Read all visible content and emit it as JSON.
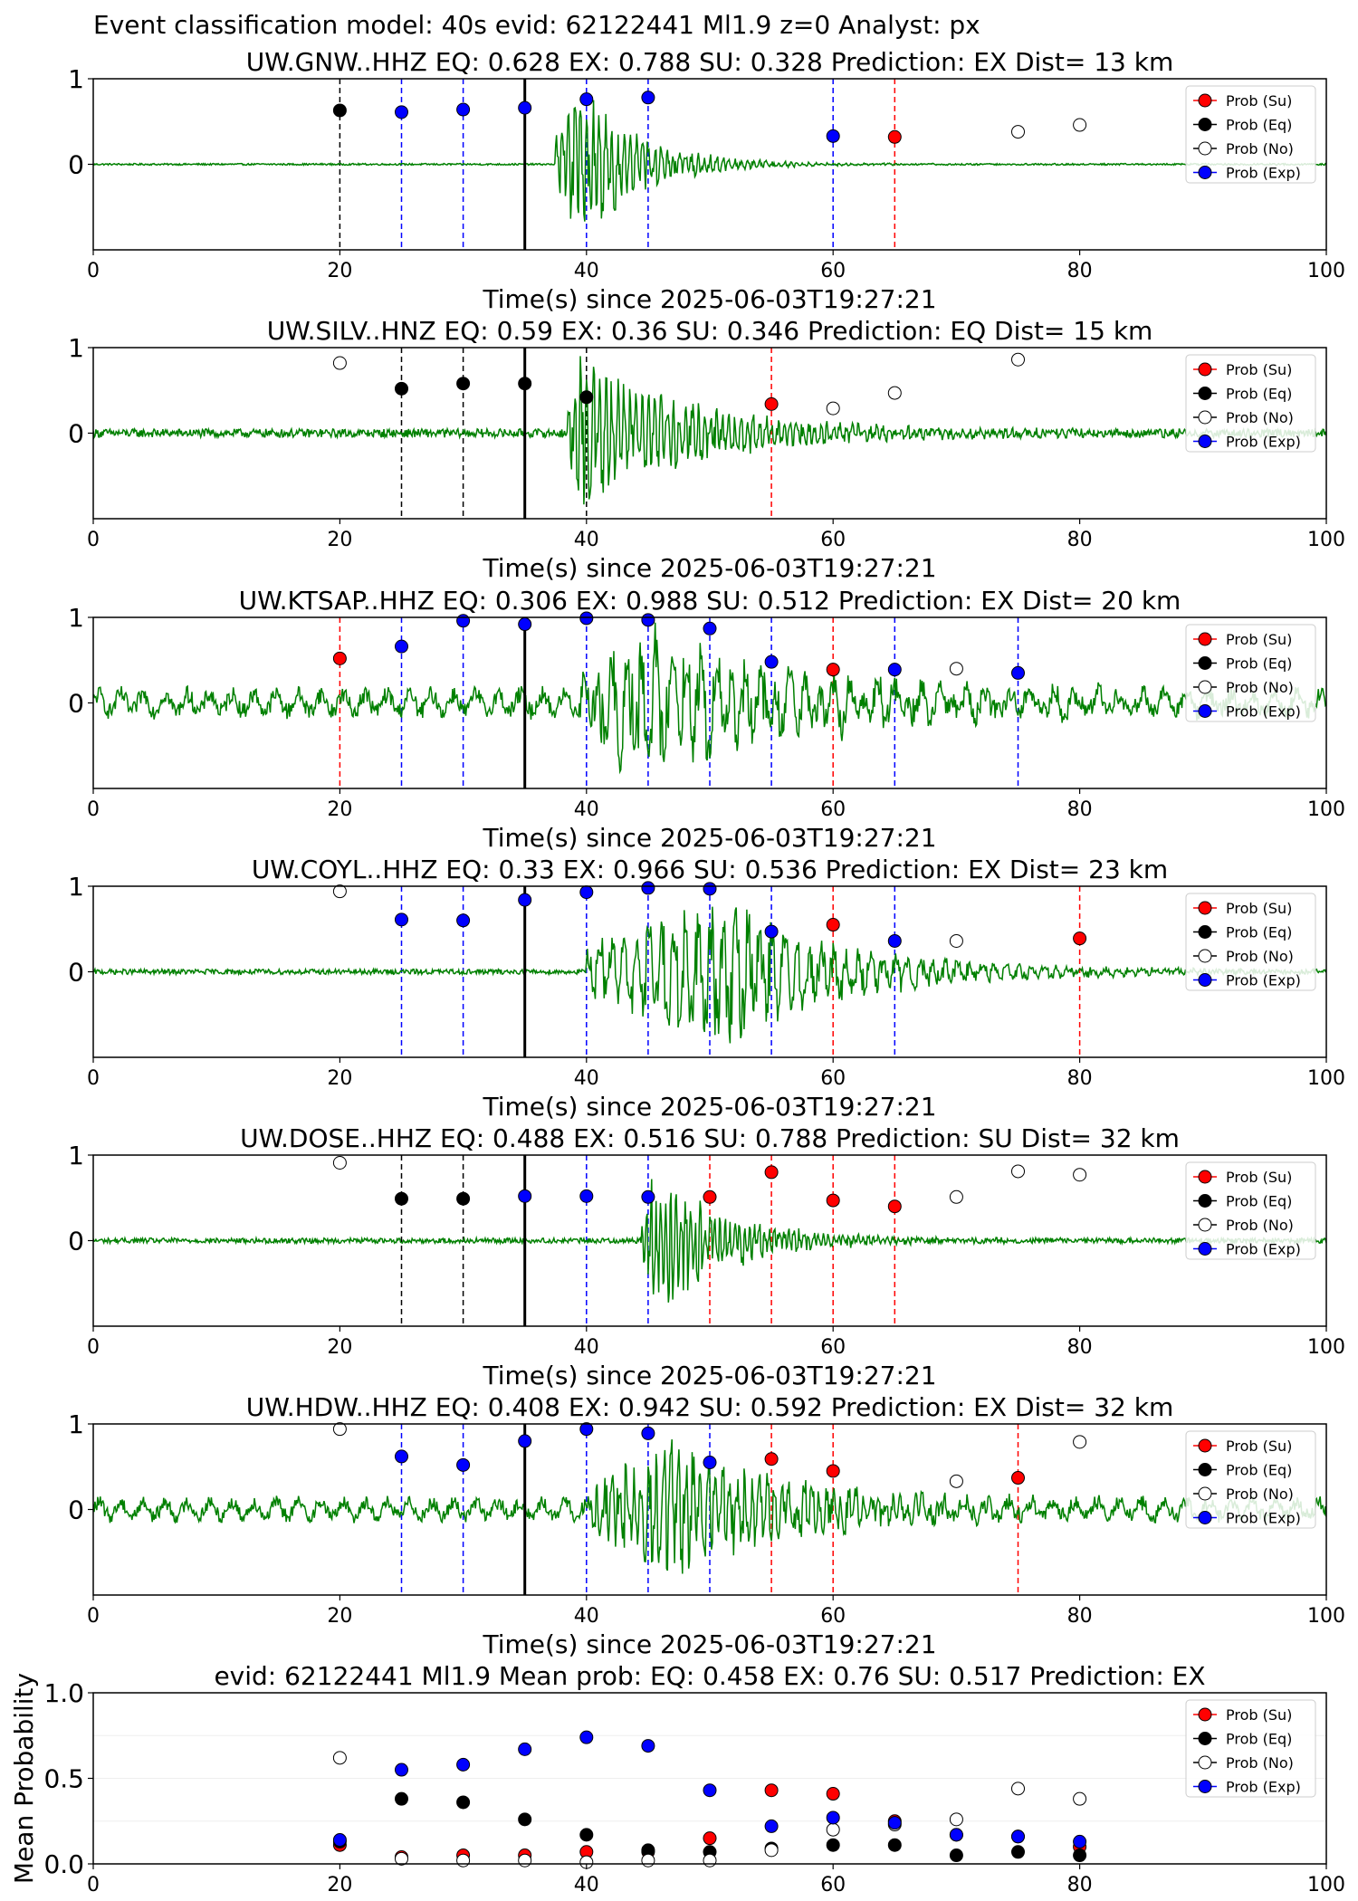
{
  "figure": {
    "suptitle": "Event classification model: 40s evid: 62122441 Ml1.9 z=0 Analyst: px",
    "colors": {
      "su": "#ff0000",
      "eq": "#000000",
      "no": "#ffffff",
      "ex": "#0000ff",
      "trace": "#008000",
      "ex_line": "#0000ff",
      "su_line": "#ff0000",
      "eq_line": "#000000"
    },
    "legend": [
      "Prob (Su)",
      "Prob (Eq)",
      "Prob (No)",
      "Prob (Exp)"
    ]
  },
  "chart_data": [
    {
      "type": "scatter",
      "station": "UW.GNW..HHZ",
      "title": "UW.GNW..HHZ   EQ: 0.628  EX: 0.788  SU: 0.328   Prediction: EX    Dist= 13 km",
      "xlabel": "Time(s) since 2025-06-03T19:27:21",
      "xlim": [
        0,
        100
      ],
      "ylim": [
        -1,
        1
      ],
      "xticks": [
        "0",
        "20",
        "40",
        "60",
        "80",
        "100"
      ],
      "yticks": [
        "1",
        "0"
      ],
      "origin_line": 35,
      "noise_amp": 0.01,
      "wave": {
        "onset": 37.5,
        "peak": 39.5,
        "amp": 0.95,
        "decay": 5,
        "period": 0.5
      },
      "windows": [
        {
          "t": 20,
          "cls": "eq",
          "p": 0.63
        },
        {
          "t": 25,
          "cls": "ex",
          "p": 0.61
        },
        {
          "t": 30,
          "cls": "ex",
          "p": 0.64
        },
        {
          "t": 35,
          "cls": "ex",
          "p": 0.66
        },
        {
          "t": 40,
          "cls": "ex",
          "p": 0.76
        },
        {
          "t": 45,
          "cls": "ex",
          "p": 0.78
        },
        {
          "t": 60,
          "cls": "ex",
          "p": 0.33
        },
        {
          "t": 65,
          "cls": "su",
          "p": 0.32
        },
        {
          "t": 75,
          "cls": "no",
          "p": 0.38
        },
        {
          "t": 80,
          "cls": "no",
          "p": 0.46
        }
      ]
    },
    {
      "type": "scatter",
      "station": "UW.SILV..HNZ",
      "title": "UW.SILV..HNZ   EQ: 0.59  EX: 0.36  SU: 0.346   Prediction: EQ    Dist= 15 km",
      "xlabel": "Time(s) since 2025-06-03T19:27:21",
      "xlim": [
        0,
        100
      ],
      "ylim": [
        -1,
        1
      ],
      "xticks": [
        "0",
        "20",
        "40",
        "60",
        "80",
        "100"
      ],
      "yticks": [
        "1",
        "0"
      ],
      "origin_line": 35,
      "noise_amp": 0.05,
      "wave": {
        "onset": 38.5,
        "peak": 39.5,
        "amp": 0.95,
        "decay": 10,
        "period": 0.5
      },
      "windows": [
        {
          "t": 20,
          "cls": "no",
          "p": 0.82
        },
        {
          "t": 25,
          "cls": "eq",
          "p": 0.52
        },
        {
          "t": 30,
          "cls": "eq",
          "p": 0.58
        },
        {
          "t": 35,
          "cls": "eq",
          "p": 0.58
        },
        {
          "t": 40,
          "cls": "eq",
          "p": 0.42
        },
        {
          "t": 55,
          "cls": "su",
          "p": 0.34
        },
        {
          "t": 60,
          "cls": "no",
          "p": 0.29
        },
        {
          "t": 65,
          "cls": "no",
          "p": 0.47
        },
        {
          "t": 75,
          "cls": "no",
          "p": 0.86
        }
      ]
    },
    {
      "type": "scatter",
      "station": "UW.KTSAP..HHZ",
      "title": "UW.KTSAP..HHZ   EQ: 0.306  EX: 0.988  SU: 0.512   Prediction: EX    Dist= 20 km",
      "xlabel": "Time(s) since 2025-06-03T19:27:21",
      "xlim": [
        0,
        100
      ],
      "ylim": [
        -1,
        1
      ],
      "xticks": [
        "0",
        "20",
        "40",
        "60",
        "80",
        "100"
      ],
      "yticks": [
        "1",
        "0"
      ],
      "origin_line": 35,
      "noise_amp": 0.1,
      "wave": {
        "onset": 39.5,
        "peak": 44.5,
        "amp": 0.9,
        "decay": 14,
        "period": 1.2
      },
      "windows": [
        {
          "t": 20,
          "cls": "su",
          "p": 0.52
        },
        {
          "t": 25,
          "cls": "ex",
          "p": 0.66
        },
        {
          "t": 30,
          "cls": "ex",
          "p": 0.96
        },
        {
          "t": 35,
          "cls": "ex",
          "p": 0.92
        },
        {
          "t": 40,
          "cls": "ex",
          "p": 0.99
        },
        {
          "t": 45,
          "cls": "ex",
          "p": 0.97
        },
        {
          "t": 50,
          "cls": "ex",
          "p": 0.87
        },
        {
          "t": 55,
          "cls": "ex",
          "p": 0.48
        },
        {
          "t": 60,
          "cls": "su",
          "p": 0.39
        },
        {
          "t": 65,
          "cls": "ex",
          "p": 0.39
        },
        {
          "t": 70,
          "cls": "no",
          "p": 0.4
        },
        {
          "t": 75,
          "cls": "ex",
          "p": 0.35
        }
      ]
    },
    {
      "type": "scatter",
      "station": "UW.COYL..HHZ",
      "title": "UW.COYL..HHZ   EQ: 0.33  EX: 0.966  SU: 0.536   Prediction: EX    Dist= 23 km",
      "xlabel": "Time(s) since 2025-06-03T19:27:21",
      "xlim": [
        0,
        100
      ],
      "ylim": [
        -1,
        1
      ],
      "xticks": [
        "0",
        "20",
        "40",
        "60",
        "80",
        "100"
      ],
      "yticks": [
        "1",
        "0"
      ],
      "origin_line": 35,
      "noise_amp": 0.03,
      "wave": {
        "onset": 40,
        "peak": 51.5,
        "amp": 0.95,
        "decay": 10,
        "period": 1.0
      },
      "windows": [
        {
          "t": 20,
          "cls": "no",
          "p": 0.94
        },
        {
          "t": 25,
          "cls": "ex",
          "p": 0.61
        },
        {
          "t": 30,
          "cls": "ex",
          "p": 0.6
        },
        {
          "t": 35,
          "cls": "ex",
          "p": 0.84
        },
        {
          "t": 40,
          "cls": "ex",
          "p": 0.93
        },
        {
          "t": 45,
          "cls": "ex",
          "p": 0.98
        },
        {
          "t": 50,
          "cls": "ex",
          "p": 0.97
        },
        {
          "t": 55,
          "cls": "ex",
          "p": 0.47
        },
        {
          "t": 60,
          "cls": "su",
          "p": 0.55
        },
        {
          "t": 65,
          "cls": "ex",
          "p": 0.36
        },
        {
          "t": 70,
          "cls": "no",
          "p": 0.36
        },
        {
          "t": 80,
          "cls": "su",
          "p": 0.39
        }
      ]
    },
    {
      "type": "scatter",
      "station": "UW.DOSE..HHZ",
      "title": "UW.DOSE..HHZ   EQ: 0.488  EX: 0.516  SU: 0.788   Prediction: SU    Dist= 32 km",
      "xlabel": "Time(s) since 2025-06-03T19:27:21",
      "xlim": [
        0,
        100
      ],
      "ylim": [
        -1,
        1
      ],
      "xticks": [
        "0",
        "20",
        "40",
        "60",
        "80",
        "100"
      ],
      "yticks": [
        "1",
        "0"
      ],
      "origin_line": 35,
      "noise_amp": 0.03,
      "wave": {
        "onset": 44.5,
        "peak": 45.5,
        "amp": 0.95,
        "decay": 6,
        "period": 0.4
      },
      "windows": [
        {
          "t": 20,
          "cls": "no",
          "p": 0.91
        },
        {
          "t": 25,
          "cls": "eq",
          "p": 0.49
        },
        {
          "t": 30,
          "cls": "eq",
          "p": 0.49
        },
        {
          "t": 35,
          "cls": "ex",
          "p": 0.52
        },
        {
          "t": 40,
          "cls": "ex",
          "p": 0.52
        },
        {
          "t": 45,
          "cls": "ex",
          "p": 0.51
        },
        {
          "t": 50,
          "cls": "su",
          "p": 0.51
        },
        {
          "t": 55,
          "cls": "su",
          "p": 0.8
        },
        {
          "t": 60,
          "cls": "su",
          "p": 0.47
        },
        {
          "t": 65,
          "cls": "su",
          "p": 0.4
        },
        {
          "t": 70,
          "cls": "no",
          "p": 0.51
        },
        {
          "t": 75,
          "cls": "no",
          "p": 0.81
        },
        {
          "t": 80,
          "cls": "no",
          "p": 0.77
        }
      ]
    },
    {
      "type": "scatter",
      "station": "UW.HDW..HHZ",
      "title": "UW.HDW..HHZ   EQ: 0.408  EX: 0.942  SU: 0.592   Prediction: EX    Dist= 32 km",
      "xlabel": "Time(s) since 2025-06-03T19:27:21",
      "xlim": [
        0,
        100
      ],
      "ylim": [
        -1,
        1
      ],
      "xticks": [
        "0",
        "20",
        "40",
        "60",
        "80",
        "100"
      ],
      "yticks": [
        "1",
        "0"
      ],
      "origin_line": 35,
      "noise_amp": 0.08,
      "wave": {
        "onset": 40.5,
        "peak": 47,
        "amp": 0.9,
        "decay": 10,
        "period": 0.6
      },
      "windows": [
        {
          "t": 20,
          "cls": "no",
          "p": 0.94
        },
        {
          "t": 25,
          "cls": "ex",
          "p": 0.62
        },
        {
          "t": 30,
          "cls": "ex",
          "p": 0.52
        },
        {
          "t": 35,
          "cls": "ex",
          "p": 0.8
        },
        {
          "t": 40,
          "cls": "ex",
          "p": 0.94
        },
        {
          "t": 45,
          "cls": "ex",
          "p": 0.89
        },
        {
          "t": 50,
          "cls": "ex",
          "p": 0.55
        },
        {
          "t": 55,
          "cls": "su",
          "p": 0.59
        },
        {
          "t": 60,
          "cls": "su",
          "p": 0.45
        },
        {
          "t": 70,
          "cls": "no",
          "p": 0.33
        },
        {
          "t": 75,
          "cls": "su",
          "p": 0.37
        },
        {
          "t": 80,
          "cls": "no",
          "p": 0.79
        }
      ]
    },
    {
      "type": "scatter",
      "station": "mean",
      "title": "evid: 62122441  Ml1.9   Mean prob:    EQ: 0.458  EX: 0.76  SU: 0.517   Prediction: EX",
      "ylabel": "Mean Probability",
      "xlim": [
        0,
        100
      ],
      "ylim": [
        0,
        1
      ],
      "xticks": [
        "0",
        "20",
        "40",
        "60",
        "80",
        "100"
      ],
      "yticks": [
        "1.0",
        "0.5",
        "0.0"
      ],
      "x": [
        20,
        25,
        30,
        35,
        40,
        45,
        50,
        55,
        60,
        65,
        70,
        75,
        80
      ],
      "series": [
        {
          "name": "Prob (Su)",
          "cls": "su",
          "values": [
            0.11,
            0.04,
            0.05,
            0.05,
            0.07,
            0.07,
            0.15,
            0.43,
            0.41,
            0.25,
            0.17,
            0.16,
            0.1
          ]
        },
        {
          "name": "Prob (Eq)",
          "cls": "eq",
          "values": [
            0.13,
            0.38,
            0.36,
            0.26,
            0.17,
            0.08,
            0.07,
            0.09,
            0.11,
            0.11,
            0.05,
            0.07,
            0.05
          ]
        },
        {
          "name": "Prob (No)",
          "cls": "no",
          "values": [
            0.62,
            0.03,
            0.02,
            0.02,
            0.01,
            0.02,
            0.02,
            0.08,
            0.2,
            0.23,
            0.26,
            0.44,
            0.38
          ]
        },
        {
          "name": "Prob (Exp)",
          "cls": "ex",
          "values": [
            0.14,
            0.55,
            0.58,
            0.67,
            0.74,
            0.69,
            0.43,
            0.22,
            0.27,
            0.24,
            0.17,
            0.16,
            0.13
          ]
        }
      ]
    }
  ]
}
